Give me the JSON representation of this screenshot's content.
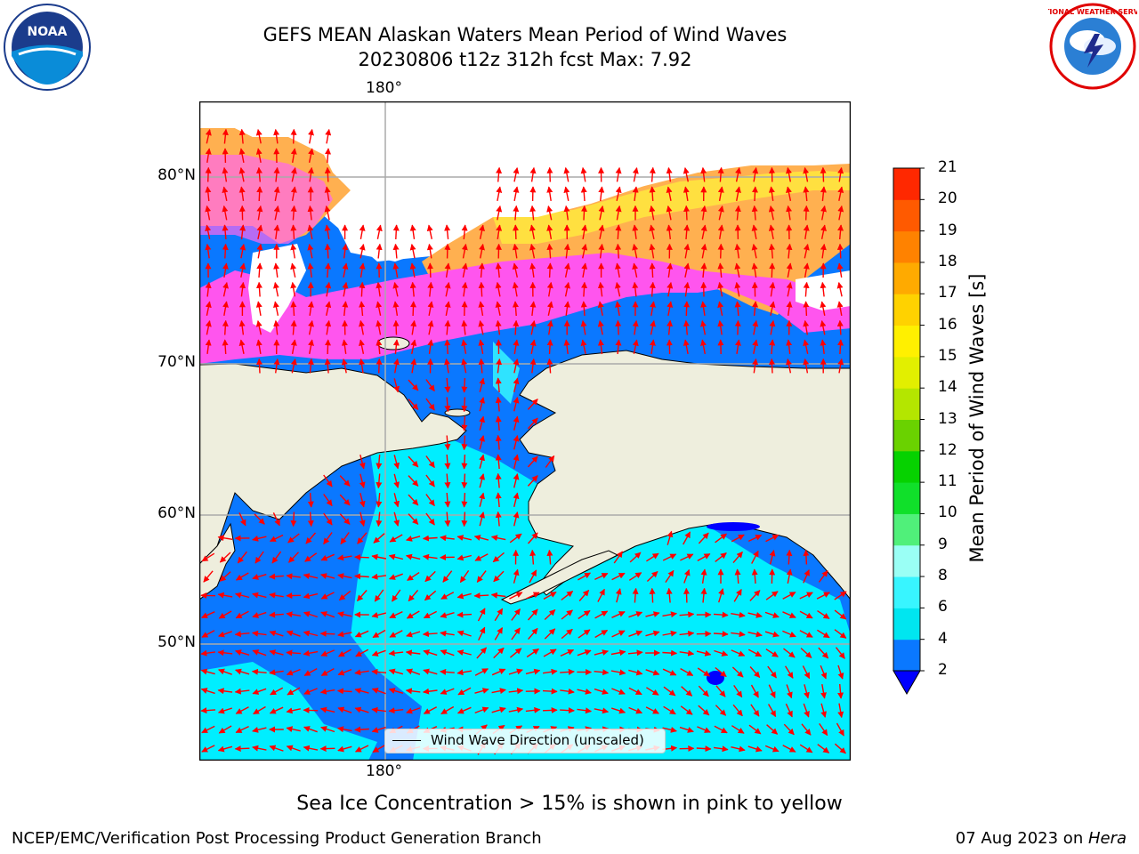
{
  "title": {
    "line1": "GEFS MEAN Alaskan Waters Mean Period of Wind Waves",
    "line2": "20230806 t12z 312h fcst   Max: 7.92"
  },
  "axes": {
    "lon_top": "180°",
    "lon_bottom": "180°",
    "lat_labels": [
      "80°N",
      "70°N",
      "60°N",
      "50°N"
    ]
  },
  "legend": {
    "label": "Wind Wave Direction (unscaled)"
  },
  "colorbar": {
    "label": "Mean Period of Wind Waves [s]",
    "ticks": [
      "2",
      "4",
      "6",
      "8",
      "9",
      "10",
      "11",
      "12",
      "13",
      "14",
      "15",
      "16",
      "17",
      "18",
      "19",
      "20",
      "21"
    ],
    "colors": [
      "#0a78ff",
      "#00e6f0",
      "#38f5ff",
      "#9afff5",
      "#50f07a",
      "#10e02a",
      "#06d200",
      "#6ad200",
      "#b4e600",
      "#e2ef00",
      "#fff000",
      "#ffd200",
      "#ffaa00",
      "#ff8200",
      "#ff5a00",
      "#ff2800"
    ],
    "under_color": "#0000ff"
  },
  "caption": "Sea Ice Concentration > 15% is shown in pink to yellow",
  "footer": {
    "left": "NCEP/EMC/Verification Post Processing Product Generation Branch",
    "right_date": "07 Aug 2023 on ",
    "right_host": "Hera"
  },
  "logos": {
    "noaa": "NOAA",
    "nws": "NATIONAL WEATHER SERVICE"
  },
  "colors": {
    "land": "#eeeedd",
    "ocean_deep": "#0a78ff",
    "ocean_light": "#00f0ff",
    "ice_pink": "#ff55ee",
    "ice_orange": "#ffb050",
    "ice_yellow": "#ffe040",
    "arrow": "#ff0000",
    "grid": "#aaaaaa"
  }
}
